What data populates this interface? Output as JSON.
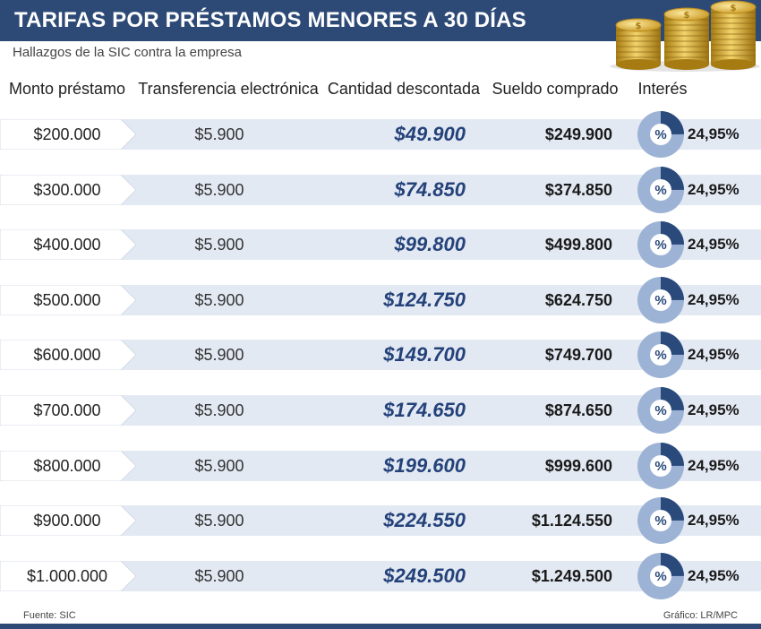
{
  "title": "TARIFAS POR PRÉSTAMOS MENORES A 30 DÍAS",
  "subtitle": "Hallazgos de la SIC contra la empresa",
  "columns": {
    "loan": "Monto préstamo",
    "transfer": "Transferencia electrónica",
    "discount": "Cantidad descontada",
    "salary": "Sueldo comprado",
    "rate": "Interés"
  },
  "footer": {
    "source": "Fuente:  SIC",
    "credit": "Gráfico: LR/MPC"
  },
  "colors": {
    "title_bg": "#2d4a77",
    "row_band": "#e3e9f3",
    "discount_text": "#24427a",
    "pie_dark": "#2a4a7c",
    "pie_light": "#9db3d5"
  },
  "icons": {
    "coins": "gold-coin-stacks-icon",
    "percent": "percent-pie-icon"
  },
  "chart_data": {
    "type": "table",
    "percent_symbol": "%",
    "rows": [
      {
        "loan": "$200.000",
        "transfer": "$5.900",
        "discount": "$49.900",
        "salary": "$249.900",
        "rate": "24,95%",
        "rate_value": 24.95
      },
      {
        "loan": "$300.000",
        "transfer": "$5.900",
        "discount": "$74.850",
        "salary": "$374.850",
        "rate": "24,95%",
        "rate_value": 24.95
      },
      {
        "loan": "$400.000",
        "transfer": "$5.900",
        "discount": "$99.800",
        "salary": "$499.800",
        "rate": "24,95%",
        "rate_value": 24.95
      },
      {
        "loan": "$500.000",
        "transfer": "$5.900",
        "discount": "$124.750",
        "salary": "$624.750",
        "rate": "24,95%",
        "rate_value": 24.95
      },
      {
        "loan": "$600.000",
        "transfer": "$5.900",
        "discount": "$149.700",
        "salary": "$749.700",
        "rate": "24,95%",
        "rate_value": 24.95
      },
      {
        "loan": "$700.000",
        "transfer": "$5.900",
        "discount": "$174.650",
        "salary": "$874.650",
        "rate": "24,95%",
        "rate_value": 24.95
      },
      {
        "loan": "$800.000",
        "transfer": "$5.900",
        "discount": "$199.600",
        "salary": "$999.600",
        "rate": "24,95%",
        "rate_value": 24.95
      },
      {
        "loan": "$900.000",
        "transfer": "$5.900",
        "discount": "$224.550",
        "salary": "$1.124.550",
        "rate": "24,95%",
        "rate_value": 24.95
      },
      {
        "loan": "$1.000.000",
        "transfer": "$5.900",
        "discount": "$249.500",
        "salary": "$1.249.500",
        "rate": "24,95%",
        "rate_value": 24.95
      }
    ]
  }
}
